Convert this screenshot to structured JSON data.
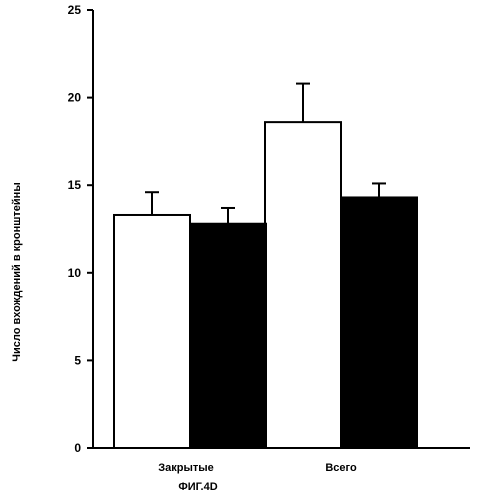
{
  "chart_data": {
    "type": "bar",
    "categories": [
      "Закрытые",
      "Всего"
    ],
    "series": [
      {
        "values": [
          13.3,
          18.6
        ],
        "errors": [
          1.3,
          2.2
        ],
        "color": "#ffffff"
      },
      {
        "values": [
          12.8,
          14.3
        ],
        "errors": [
          0.9,
          0.8
        ],
        "color": "#000000"
      }
    ],
    "ylabel": "Число вхождений в кронштейны",
    "xlabel": "",
    "ylim": [
      0,
      25
    ],
    "yticks": [
      0,
      5,
      10,
      15,
      20,
      25
    ],
    "grid": false
  },
  "figure_caption": "ФИГ.4D"
}
